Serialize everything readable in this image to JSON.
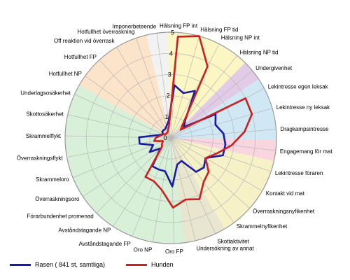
{
  "chart_data": {
    "type": "radar",
    "title": "",
    "rlim": [
      0,
      5
    ],
    "r_ticks": [
      "0",
      "1",
      "2",
      "3",
      "4",
      "5"
    ],
    "axes": [
      "Hälsning FP int",
      "Hälsning FP tid",
      "Hälsning NP int",
      "Hälsning NP tid",
      "Undergivenhet",
      "Lekintresse egen leksak",
      "Lekintresse ny leksak",
      "Dragkampsintresse",
      "Engagemang för mat",
      "Lekintresse föraren",
      "Kontakt vid mat",
      "Överraskningsnyfikenhet",
      "Skrammelnyfikenhet",
      "Skottaktivitet",
      "Undersökning av annat",
      "Oro FP",
      "Oro NP",
      "Avståndstagande FP",
      "Avståndstagande NP",
      "Förarbundenhet promenad",
      "Överraskningsoro",
      "Skrammeloro",
      "Överraskningsflykt",
      "Skrammelflykt",
      "Skottosäkerhet",
      "Underlagsosäkerhet",
      "Hotfullhet NP",
      "Hotfullhet FP",
      "Off reaktion vid överrask",
      "Hotfullhet överraskning",
      "Imponerbeteende"
    ],
    "series": [
      {
        "name": "Rasen ( 841 st, samtliga)",
        "values": [
          2.5,
          2.2,
          2.5,
          1.1,
          0.8,
          2.4,
          2.2,
          2.5,
          2.6,
          2.6,
          1.9,
          2.1,
          2.0,
          1.2,
          1.3,
          2.3,
          1.6,
          1.6,
          1.6,
          0.7,
          1.2,
          0.9,
          1.5,
          1.5,
          0.6,
          0.4,
          0.5,
          0.5,
          0.5,
          0.6,
          0.8
        ],
        "color": "#1a1aa6"
      },
      {
        "name": "Hunden",
        "values": [
          4.8,
          5.0,
          3.8,
          1.0,
          0.6,
          4.0,
          4.0,
          3.5,
          2.9,
          2.3,
          1.9,
          2.4,
          2.6,
          3.2,
          3.0,
          3.3,
          2.5,
          2.2,
          2.2,
          0.6,
          0.5,
          0.4,
          0.8,
          0.7,
          0.5,
          0.4,
          0.3,
          0.3,
          0.3,
          0.4,
          0.6
        ],
        "color": "#cc1f1f"
      }
    ],
    "category_colors": {
      "greeting": "#fbf6c4",
      "submission": "#e2cbe6",
      "play": "#cfe8f3",
      "food": "#f9d5df",
      "curiosity": "#f7f1c8",
      "activity": "#e8e6cf",
      "fear": "#d8f0d8",
      "aggression": "#fbe4c9",
      "bold": "#f2f2f2"
    },
    "grid": true,
    "legend_position": "bottom-left"
  },
  "legend": {
    "series1": "Rasen ( 841 st, samtliga)",
    "series2": "Hunden"
  }
}
